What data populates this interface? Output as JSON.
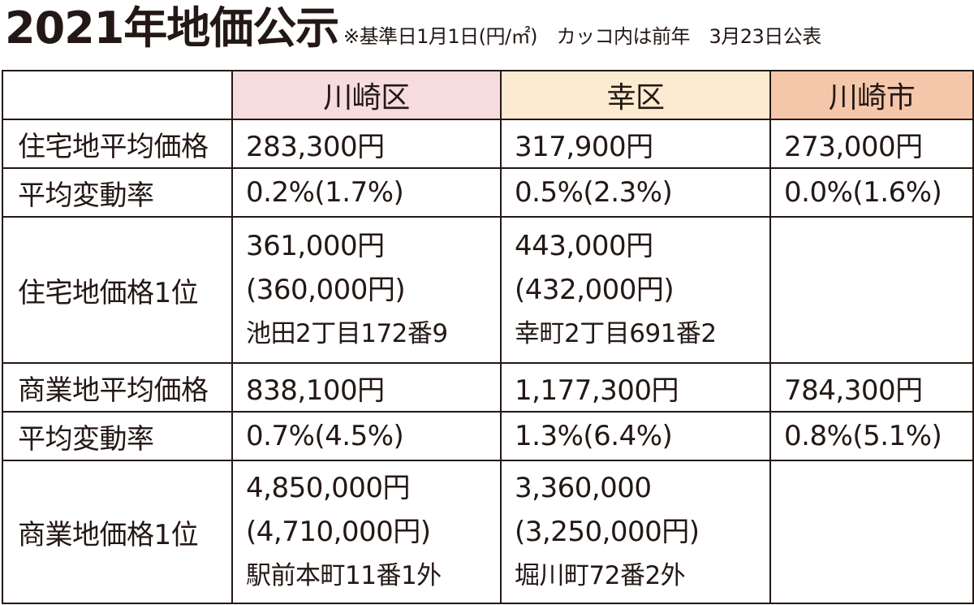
{
  "header": {
    "title": "2021年地価公示",
    "subtitle": "※基準日1月1日(円/㎡)　カッコ内は前年　3月23日公表"
  },
  "table": {
    "columns": [
      "川崎区",
      "幸区",
      "川崎市"
    ],
    "rows": [
      {
        "label": "住宅地平均価格",
        "cells": [
          [
            "283,300円"
          ],
          [
            "317,900円"
          ],
          [
            "273,000円"
          ]
        ]
      },
      {
        "label": "平均変動率",
        "cells": [
          [
            "0.2%(1.7%)"
          ],
          [
            "0.5%(2.3%)"
          ],
          [
            "0.0%(1.6%)"
          ]
        ]
      },
      {
        "label": "住宅地価格1位",
        "cells": [
          [
            "361,000円",
            "(360,000円)",
            "池田2丁目172番9"
          ],
          [
            "443,000円",
            "(432,000円)",
            "幸町2丁目691番2"
          ],
          []
        ]
      },
      {
        "label": "商業地平均価格",
        "cells": [
          [
            "838,100円"
          ],
          [
            "1,177,300円"
          ],
          [
            "784,300円"
          ]
        ]
      },
      {
        "label": "平均変動率",
        "cells": [
          [
            "0.7%(4.5%)"
          ],
          [
            "1.3%(6.4%)"
          ],
          [
            "0.8%(5.1%)"
          ]
        ]
      },
      {
        "label": "商業地価格1位",
        "cells": [
          [
            "4,850,000円",
            "(4,710,000円)",
            "駅前本町11番1外"
          ],
          [
            "3,360,000",
            "(3,250,000円)",
            "堀川町72番2外"
          ],
          []
        ]
      }
    ]
  }
}
